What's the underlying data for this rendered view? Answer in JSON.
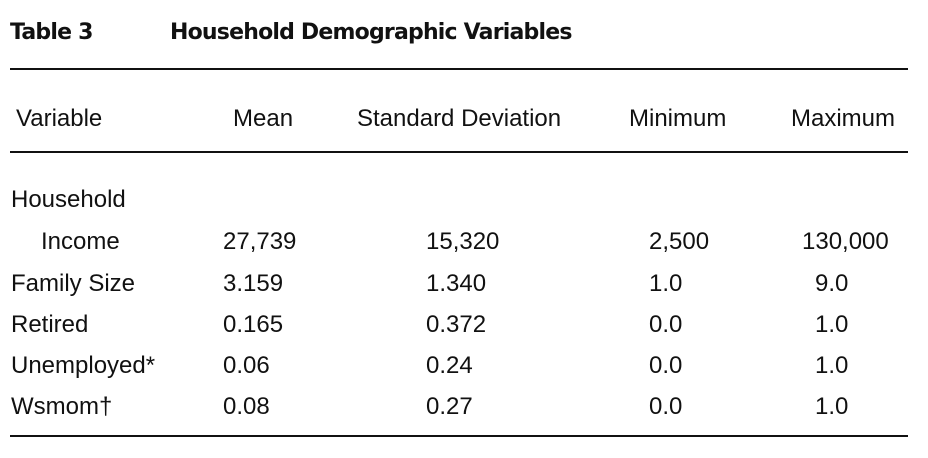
{
  "caption": {
    "label": "Table 3",
    "title": "Household Demographic Variables"
  },
  "columns": [
    "Variable",
    "Mean",
    "Standard Deviation",
    "Minimum",
    "Maximum"
  ],
  "rows": [
    {
      "variable_line1": "Household",
      "variable": "Income",
      "mean": "27,739",
      "sd": "15,320",
      "min": "2,500",
      "max": "130,000"
    },
    {
      "variable": "Family Size",
      "mean": "3.159",
      "sd": "1.340",
      "min": "1.0",
      "max": "9.0"
    },
    {
      "variable": "Retired",
      "mean": "0.165",
      "sd": "0.372",
      "min": "0.0",
      "max": "1.0"
    },
    {
      "variable": "Unemployed*",
      "mean": "0.06",
      "sd": "0.24",
      "min": "0.0",
      "max": "1.0"
    },
    {
      "variable": "Wsmom†",
      "mean": "0.08",
      "sd": "0.27",
      "min": "0.0",
      "max": "1.0"
    }
  ]
}
